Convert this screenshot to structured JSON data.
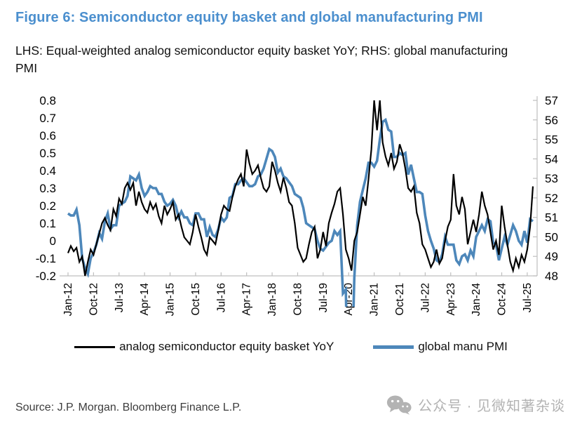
{
  "header": {
    "title": "Figure 6: Semiconductor equity basket and global manufacturing PMI",
    "subtitle": "LHS: Equal-weighted analog semiconductor equity basket YoY; RHS: global manufacturing PMI"
  },
  "chart_data": {
    "type": "line",
    "title": "Figure 6: Semiconductor equity basket and global manufacturing PMI",
    "x_unit": "monthly",
    "x_start": "Jan-12",
    "x_end": "Sep-25",
    "x_tick_labels": [
      "Jan-12",
      "Oct-12",
      "Jul-13",
      "Apr-14",
      "Jan-15",
      "Oct-15",
      "Jul-16",
      "Apr-17",
      "Jan-18",
      "Oct-18",
      "Jul-19",
      "Apr-20",
      "Jan-21",
      "Oct-21",
      "Jul-22",
      "Apr-23",
      "Jan-24",
      "Oct-24",
      "Jul-25"
    ],
    "x_tick_interval_months": 9,
    "grid": false,
    "legend_position": "bottom",
    "lhs_axis": {
      "range": [
        -0.2,
        0.8
      ],
      "ticks": [
        "0.8",
        "0.7",
        "0.6",
        "0.5",
        "0.4",
        "0.3",
        "0.2",
        "0.1",
        "0",
        "-0.1",
        "-0.2"
      ]
    },
    "rhs_axis": {
      "range": [
        48,
        57
      ],
      "ticks": [
        "57",
        "56",
        "55",
        "54",
        "53",
        "52",
        "51",
        "50",
        "49",
        "48"
      ]
    },
    "series": [
      {
        "name": "analog semiconductor equity basket  YoY",
        "axis": "lhs",
        "color": "#000000",
        "width": 2.2,
        "values": [
          -0.07,
          -0.03,
          -0.06,
          -0.04,
          -0.12,
          -0.09,
          -0.2,
          -0.12,
          -0.05,
          -0.08,
          -0.02,
          0.04,
          0.1,
          0.13,
          0.09,
          0.06,
          0.18,
          0.14,
          0.24,
          0.21,
          0.3,
          0.33,
          0.29,
          0.33,
          0.2,
          0.28,
          0.22,
          0.18,
          0.16,
          0.22,
          0.18,
          0.21,
          0.14,
          0.1,
          0.2,
          0.15,
          0.18,
          0.22,
          0.12,
          0.15,
          0.08,
          0.02,
          0.0,
          -0.02,
          0.05,
          0.15,
          0.08,
          0.02,
          -0.05,
          -0.08,
          0.02,
          0.0,
          -0.02,
          0.06,
          0.15,
          0.2,
          0.18,
          0.17,
          0.25,
          0.31,
          0.35,
          0.38,
          0.31,
          0.52,
          0.44,
          0.38,
          0.4,
          0.43,
          0.36,
          0.3,
          0.28,
          0.31,
          0.45,
          0.4,
          0.33,
          0.28,
          0.36,
          0.3,
          0.22,
          0.2,
          0.1,
          -0.04,
          -0.08,
          -0.12,
          -0.1,
          -0.02,
          0.05,
          0.08,
          -0.1,
          -0.05,
          0.05,
          -0.03,
          0.1,
          0.16,
          0.21,
          0.28,
          0.3,
          0.15,
          -0.05,
          -0.1,
          -0.17,
          0.0,
          0.05,
          0.15,
          0.25,
          0.2,
          0.35,
          0.52,
          0.8,
          0.63,
          0.8,
          0.56,
          0.48,
          0.43,
          0.5,
          0.41,
          0.45,
          0.55,
          0.5,
          0.41,
          0.3,
          0.28,
          0.31,
          0.16,
          0.1,
          -0.02,
          -0.05,
          -0.1,
          -0.15,
          -0.12,
          -0.05,
          -0.13,
          -0.1,
          0.0,
          0.08,
          0.12,
          0.38,
          0.2,
          0.15,
          0.25,
          0.18,
          -0.02,
          0.05,
          0.12,
          0.05,
          0.15,
          0.28,
          0.2,
          0.15,
          0.05,
          -0.05,
          0.0,
          -0.08,
          0.2,
          0.08,
          -0.02,
          -0.12,
          -0.17,
          -0.1,
          -0.15,
          -0.08,
          -0.12,
          -0.05,
          0.08,
          0.31
        ]
      },
      {
        "name": "global manu PMI",
        "axis": "rhs",
        "color": "#4d87ba",
        "width": 3.6,
        "values": [
          51.2,
          51.1,
          51.1,
          51.4,
          50.6,
          48.9,
          48.4,
          48.1,
          48.9,
          49.2,
          49.6,
          50.2,
          49.9,
          50.8,
          51.2,
          50.4,
          50.6,
          50.6,
          51.6,
          51.7,
          51.8,
          52.1,
          53.1,
          53.0,
          52.9,
          53.2,
          52.5,
          52.1,
          52.3,
          52.6,
          52.5,
          52.5,
          52.2,
          52.2,
          51.8,
          51.6,
          51.7,
          51.9,
          51.6,
          51.0,
          51.3,
          51.0,
          51.0,
          50.7,
          50.6,
          51.2,
          51.2,
          50.9,
          50.9,
          50.0,
          50.5,
          50.1,
          50.0,
          50.4,
          51.0,
          50.8,
          51.0,
          52.0,
          52.1,
          52.7,
          52.7,
          52.9,
          53.0,
          52.8,
          52.6,
          52.6,
          52.7,
          53.1,
          53.2,
          53.5,
          54.0,
          54.5,
          54.4,
          54.1,
          53.3,
          53.5,
          53.1,
          53.0,
          52.8,
          52.6,
          52.2,
          52.1,
          52.0,
          51.5,
          50.7,
          50.6,
          50.5,
          50.4,
          49.8,
          49.4,
          49.3,
          49.5,
          49.7,
          49.8,
          50.3,
          50.1,
          50.3,
          47.1,
          47.3,
          39.6,
          42.4,
          47.9,
          50.6,
          51.8,
          52.4,
          53.0,
          53.8,
          53.8,
          53.6,
          53.9,
          55.0,
          55.9,
          56.0,
          55.5,
          55.4,
          54.1,
          54.1,
          54.3,
          54.2,
          54.3,
          53.2,
          53.7,
          53.0,
          52.3,
          52.3,
          52.2,
          51.1,
          50.3,
          49.8,
          49.4,
          48.8,
          48.7,
          49.1,
          50.0,
          49.6,
          49.6,
          49.6,
          48.8,
          48.6,
          49.0,
          49.1,
          48.8,
          49.3,
          49.0,
          50.0,
          50.3,
          50.6,
          50.3,
          50.9,
          50.8,
          49.7,
          49.6,
          48.8,
          49.4,
          50.0,
          49.6,
          50.1,
          50.6,
          50.3,
          49.8,
          49.6,
          50.3,
          49.7,
          50.9,
          50.8
        ]
      }
    ]
  },
  "legend": {
    "items": [
      {
        "label": "analog semiconductor equity basket  YoY",
        "color": "#000000"
      },
      {
        "label": "global manu PMI",
        "color": "#4d87ba"
      }
    ]
  },
  "footer": {
    "source": "Source: J.P. Morgan. Bloomberg Finance L.P.",
    "watermark": "公众号 · 见微知著杂谈"
  },
  "colors": {
    "title": "#4b8fce",
    "axis_line": "#bfbfbf",
    "axis_text": "#000000",
    "source_text": "#3d3d3d",
    "watermark": "#b3b3b3"
  }
}
